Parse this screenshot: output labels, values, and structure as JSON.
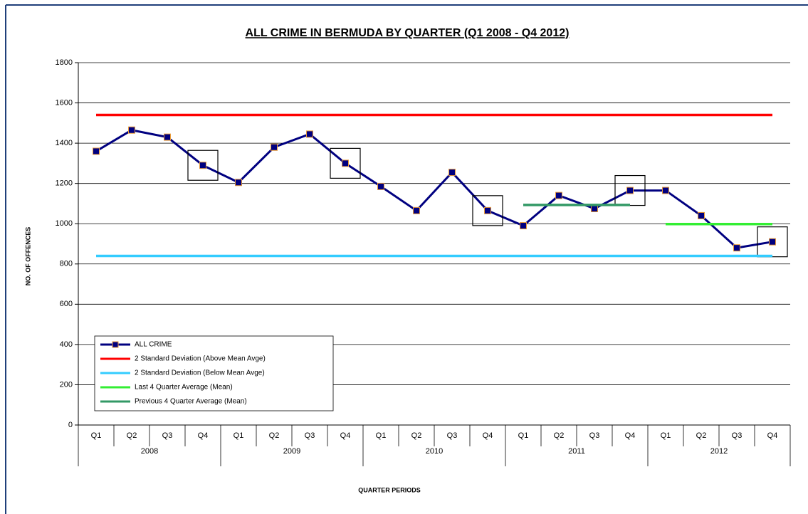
{
  "chart_data": {
    "type": "line",
    "title": "ALL CRIME IN BERMUDA BY QUARTER (Q1 2008 - Q4 2012)",
    "y_label": "NO. OF OFFENCES",
    "x_label": "QUARTER  PERIODS",
    "categories": [
      "Q1",
      "Q2",
      "Q3",
      "Q4",
      "Q1",
      "Q2",
      "Q3",
      "Q4",
      "Q1",
      "Q2",
      "Q3",
      "Q4",
      "Q1",
      "Q2",
      "Q3",
      "Q4",
      "Q1",
      "Q2",
      "Q3",
      "Q4"
    ],
    "years": [
      "2008",
      "2009",
      "2010",
      "2011",
      "2012"
    ],
    "series": [
      {
        "name": "ALL CRIME",
        "color": "#000080",
        "marker": true,
        "values": [
          1360,
          1465,
          1430,
          1290,
          1205,
          1380,
          1445,
          1300,
          1185,
          1065,
          1255,
          1065,
          990,
          1140,
          1075,
          1165,
          1165,
          1040,
          880,
          910
        ]
      },
      {
        "name": "2 Standard Deviation (Above Mean Avge)",
        "color": "#ff0000",
        "values": [
          1540,
          1540,
          1540,
          1540,
          1540,
          1540,
          1540,
          1540,
          1540,
          1540,
          1540,
          1540,
          1540,
          1540,
          1540,
          1540,
          1540,
          1540,
          1540,
          1540
        ]
      },
      {
        "name": "2 Standard Deviation (Below Mean Avge)",
        "color": "#33ccff",
        "values": [
          840,
          840,
          840,
          840,
          840,
          840,
          840,
          840,
          840,
          840,
          840,
          840,
          840,
          840,
          840,
          840,
          840,
          840,
          840,
          840
        ]
      },
      {
        "name": "Last 4 Quarter Average (Mean)",
        "color": "#33ee33",
        "values": [
          null,
          null,
          null,
          null,
          null,
          null,
          null,
          null,
          null,
          null,
          null,
          null,
          null,
          null,
          null,
          null,
          998,
          998,
          998,
          998
        ]
      },
      {
        "name": "Previous 4 Quarter Average (Mean)",
        "color": "#339966",
        "values": [
          null,
          null,
          null,
          null,
          null,
          null,
          null,
          null,
          null,
          null,
          null,
          null,
          1093,
          1093,
          1093,
          1093,
          null,
          null,
          null,
          null
        ]
      }
    ],
    "ylim": [
      0,
      1800
    ],
    "yticks": [
      0,
      200,
      400,
      600,
      800,
      1000,
      1200,
      1400,
      1600,
      1800
    ],
    "grid": true,
    "legend": "lower left"
  }
}
